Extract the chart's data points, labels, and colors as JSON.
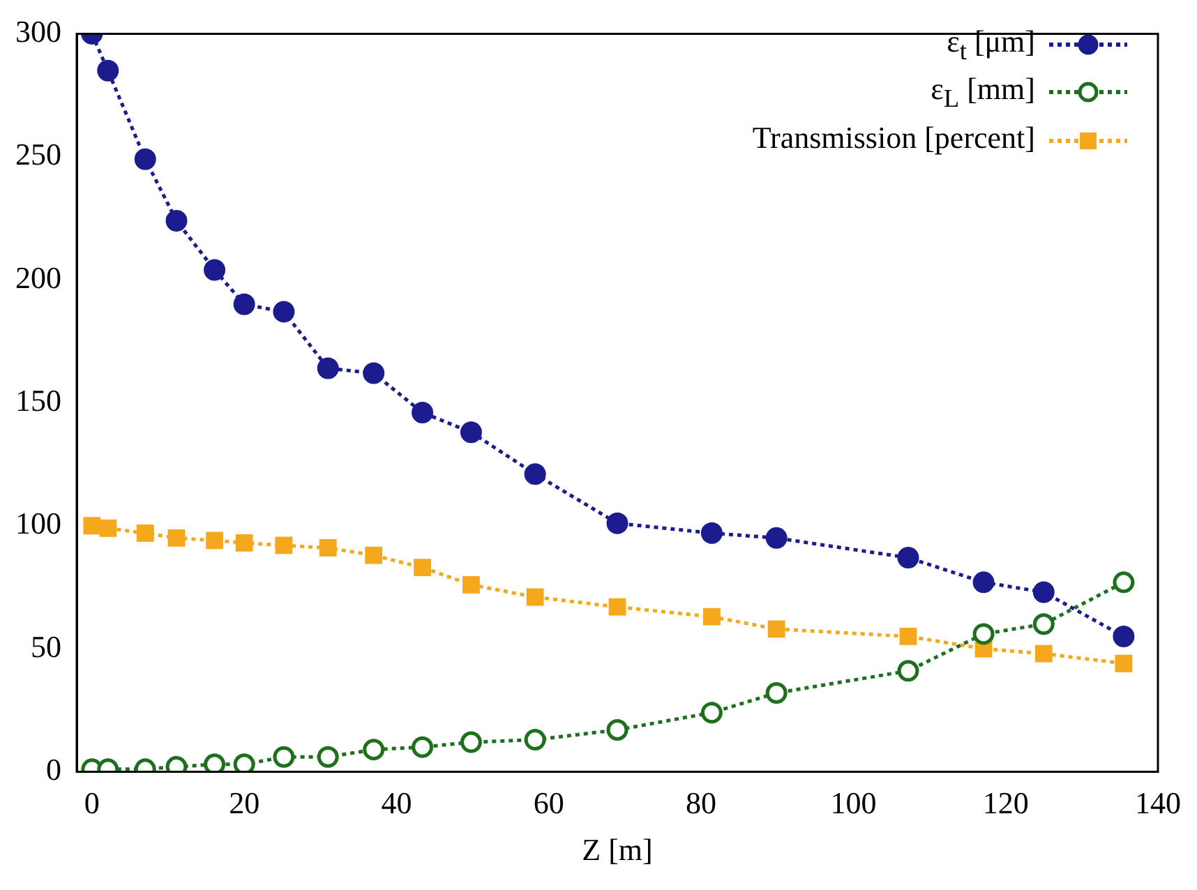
{
  "chart_data": {
    "type": "line",
    "xlabel": "Z [m]",
    "x": [
      0,
      2.1,
      7,
      11.1,
      16.1,
      20,
      25.2,
      31,
      37,
      43.4,
      49.8,
      58.2,
      69,
      81.4,
      89.9,
      107.2,
      117.1,
      125,
      135.5
    ],
    "series": [
      {
        "name": "ε$_{t}$ [μm]",
        "color": "#1c1c8f",
        "marker": "circle",
        "values": [
          300,
          285,
          249,
          224,
          204,
          190,
          187,
          164,
          162,
          146,
          138,
          121,
          101,
          97,
          95,
          87,
          77,
          73,
          55
        ]
      },
      {
        "name": "ε$_{L}$ [mm]",
        "color": "#1e701e",
        "marker": "open-circle",
        "values": [
          1,
          1,
          1,
          2,
          3,
          3,
          6,
          6,
          9,
          10,
          12,
          13,
          17,
          24,
          32,
          41,
          56,
          60,
          77
        ]
      },
      {
        "name": "Transmission [percent]",
        "color": "#f5a81c",
        "marker": "square",
        "values": [
          100,
          99,
          97,
          95,
          94,
          93,
          92,
          91,
          88,
          83,
          76,
          71,
          67,
          63,
          58,
          55,
          50,
          48,
          44
        ]
      }
    ],
    "xlim": [
      -2,
      140
    ],
    "xticks": [
      0,
      20,
      40,
      60,
      80,
      100,
      120,
      140
    ],
    "ylim": [
      0,
      300
    ],
    "yticks": [
      0,
      50,
      100,
      150,
      200,
      250,
      300
    ],
    "grid": false,
    "legend": "top right",
    "line_style": "dotted"
  }
}
